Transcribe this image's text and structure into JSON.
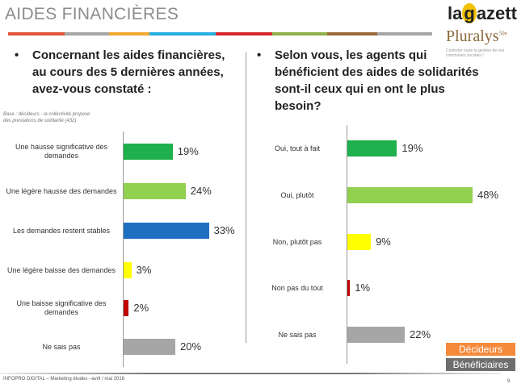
{
  "header": {
    "title": "AIDES FINANCIÈRES",
    "logo_top": "la gazette",
    "logo_bottom": "Pluralys",
    "logo_bottom_badge": "50e",
    "logo_tagline": "Conforter toute la gestion de vos communes sociales !"
  },
  "rule_colors": [
    "#e0553a",
    "#a6a6a6",
    "#f0a830",
    "#27aee0",
    "#d8262e",
    "#8fb04a",
    "#9a6a3a",
    "#a6a6a6"
  ],
  "left": {
    "question": "Concernant les aides financières, au cours des 5 dernières années, avez-vous constaté :",
    "base": "Base : décideurs - la collectivité propose des prestations de solidarité (432)"
  },
  "right": {
    "question": "Selon vous, les agents qui bénéficient des aides de solidarités sont-il ceux qui en ont le plus besoin?"
  },
  "chart_data": [
    {
      "type": "bar",
      "orientation": "horizontal",
      "categories": [
        "Une hausse significative des demandes",
        "Une légère hausse des demandes",
        "Les demandes restent stables",
        "Une légère baisse des demandes",
        "Une baisse significative des demandes",
        "Ne sais pas"
      ],
      "values": [
        19,
        24,
        33,
        3,
        2,
        20
      ],
      "labels": [
        "19%",
        "24%",
        "33%",
        "3%",
        "2%",
        "20%"
      ],
      "colors": [
        "#1db04c",
        "#92d050",
        "#1f6fc0",
        "#ffff00",
        "#c00000",
        "#a6a6a6"
      ]
    },
    {
      "type": "bar",
      "orientation": "horizontal",
      "categories": [
        "Oui, tout à fait",
        "Oui, plutôt",
        "Non, plutôt pas",
        "Non pas du tout",
        "Ne sais pas"
      ],
      "values": [
        19,
        48,
        9,
        1,
        22
      ],
      "labels": [
        "19%",
        "48%",
        "9%",
        "1%",
        "22%"
      ],
      "colors": [
        "#1db04c",
        "#92d050",
        "#ffff00",
        "#c00000",
        "#a6a6a6"
      ]
    }
  ],
  "legend": {
    "decideurs": "Décideurs",
    "beneficiaires": "Bénéficiaires",
    "decideurs_color": "#f58a3c",
    "beneficiaires_color": "#6e6e6e"
  },
  "footer": {
    "text": "INFOPRO DIGITAL – Marketing études –avril / mai 2016",
    "page": "9"
  }
}
